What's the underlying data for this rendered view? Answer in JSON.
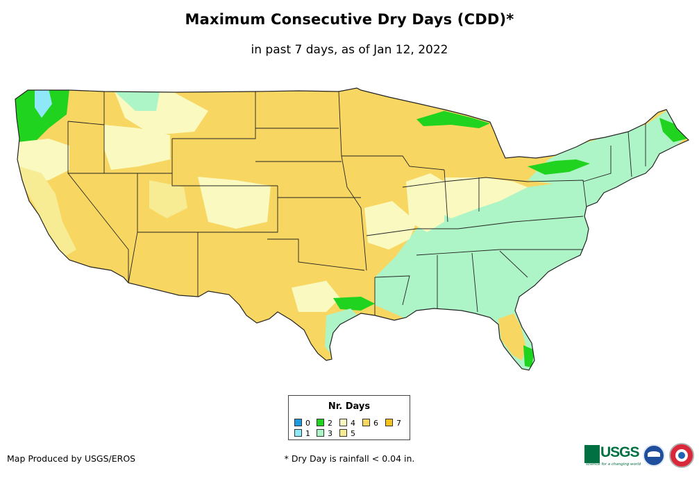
{
  "title": "Maximum Consecutive Dry Days (CDD)*",
  "subtitle": "in past 7 days, as of Jan 12, 2022",
  "legend": {
    "title": "Nr. Days",
    "items": [
      {
        "label": "0",
        "color": "#1e9be0"
      },
      {
        "label": "1",
        "color": "#8ee8f7"
      },
      {
        "label": "2",
        "color": "#1fd31f"
      },
      {
        "label": "3",
        "color": "#adf5c6"
      },
      {
        "label": "4",
        "color": "#fafac0"
      },
      {
        "label": "5",
        "color": "#f7ec94"
      },
      {
        "label": "6",
        "color": "#f7d662"
      },
      {
        "label": "7",
        "color": "#f9c31e"
      }
    ]
  },
  "footer": {
    "producer": "Map Produced by USGS/EROS",
    "note": "* Dry Day is rainfall < 0.04 in."
  },
  "logos": {
    "usgs": "USGS",
    "usgs_tagline": "science for a changing world",
    "noaa": "noaa-logo",
    "nws": "nws-logo"
  },
  "map": {
    "land_color": "#f7d662",
    "border_color": "#222222",
    "background": "#ffffff"
  }
}
